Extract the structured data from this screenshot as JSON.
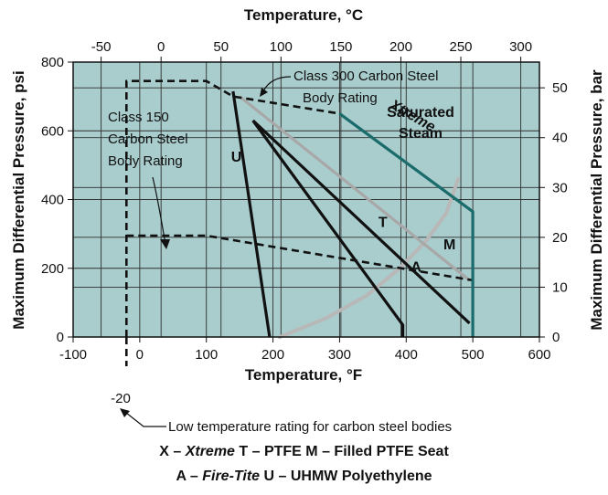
{
  "chart_data": {
    "type": "line",
    "x_axis_bottom": {
      "label": "Temperature, °F",
      "range": [
        -100,
        600
      ],
      "ticks": [
        -100,
        0,
        100,
        200,
        300,
        400,
        500,
        600
      ]
    },
    "x_axis_top": {
      "label": "Temperature, °C",
      "ticks": [
        -50,
        0,
        50,
        100,
        150,
        200,
        250,
        300
      ]
    },
    "y_axis_left": {
      "label": "Maximum Differential Pressure, psi",
      "range": [
        0,
        800
      ],
      "ticks": [
        0,
        200,
        400,
        600,
        800
      ]
    },
    "y_axis_right": {
      "label": "Maximum Differential Pressure, bar",
      "ticks": [
        0,
        10,
        20,
        30,
        40,
        50
      ]
    },
    "grid": true,
    "plot_background": "#a9cccc",
    "series": [
      {
        "name": "Class 300 Carbon Steel Body Rating",
        "style": "dashed",
        "color": "#111111",
        "points": [
          [
            -20,
            0
          ],
          [
            -20,
            745
          ],
          [
            100,
            745
          ],
          [
            140,
            700
          ],
          [
            300,
            650
          ]
        ]
      },
      {
        "name": "Class 150 Carbon Steel Body Rating",
        "style": "dashed",
        "color": "#111111",
        "points": [
          [
            -20,
            295
          ],
          [
            100,
            295
          ],
          [
            500,
            165
          ]
        ]
      },
      {
        "name": "Xtreme",
        "style": "solid",
        "color": "#1a6b6b",
        "points": [
          [
            300,
            650
          ],
          [
            500,
            365
          ],
          [
            500,
            0
          ]
        ]
      },
      {
        "name": "U",
        "style": "solid",
        "color": "#111111",
        "points": [
          [
            140,
            715
          ],
          [
            195,
            0
          ]
        ]
      },
      {
        "name": "T",
        "style": "solid",
        "color": "#111111",
        "points": [
          [
            170,
            630
          ],
          [
            395,
            35
          ],
          [
            395,
            0
          ]
        ]
      },
      {
        "name": "A",
        "style": "solid",
        "color": "#111111",
        "points": [
          [
            170,
            630
          ],
          [
            495,
            40
          ]
        ]
      },
      {
        "name": "M",
        "style": "solid",
        "color": "#a8a8a8",
        "points": [
          [
            150,
            700
          ],
          [
            495,
            165
          ]
        ]
      },
      {
        "name": "Saturated Steam",
        "style": "solid",
        "color": "#b8b8b8",
        "points": [
          [
            210,
            0
          ],
          [
            280,
            55
          ],
          [
            340,
            120
          ],
          [
            390,
            200
          ],
          [
            430,
            280
          ],
          [
            460,
            360
          ],
          [
            478,
            460
          ]
        ]
      }
    ],
    "curve_labels": [
      {
        "text": "U",
        "x": 145,
        "y": 510
      },
      {
        "text": "T",
        "x": 365,
        "y": 320
      },
      {
        "text": "M",
        "x": 465,
        "y": 255
      },
      {
        "text": "A",
        "x": 415,
        "y": 190
      }
    ]
  },
  "annotations": {
    "class300": [
      "Class 300 Carbon Steel",
      "Body Rating"
    ],
    "class150": [
      "Class 150",
      "Carbon Steel",
      "Body Rating"
    ],
    "xtreme_label": "Xtreme",
    "steam": [
      "Saturated",
      "Steam"
    ],
    "low_temp_value": "-20",
    "low_temp_note": "Low temperature rating for carbon steel bodies"
  },
  "legend": {
    "line1": {
      "x_key": "X –",
      "x_name": "Xtreme",
      "t_part": "T – PTFE",
      "m_part": "M – Filled PTFE Seat"
    },
    "line2": {
      "a_key": "A –",
      "a_name": "Fire-Tite",
      "u_part": "U – UHMW Polyethylene"
    }
  }
}
